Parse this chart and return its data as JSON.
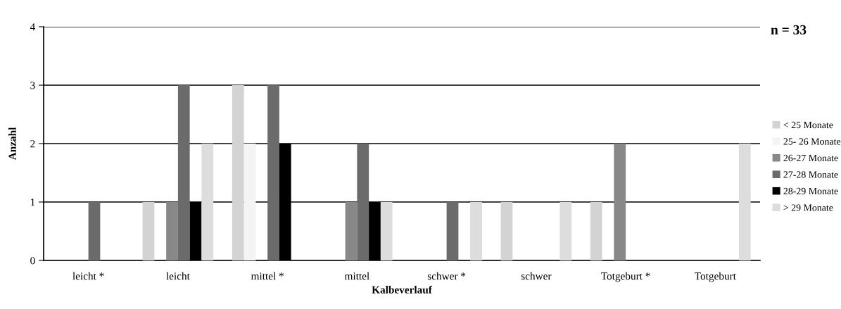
{
  "chart_data": {
    "type": "bar",
    "xlabel": "Kalbeverlauf",
    "ylabel": "Anzahl",
    "categories": [
      "leicht *",
      "leicht",
      "mittel *",
      "mittel",
      "schwer *",
      "schwer",
      "Totgeburt *",
      "Totgeburt"
    ],
    "series": [
      {
        "name": "< 25 Monate",
        "color": "#d3d3d3",
        "values": [
          0,
          1,
          3,
          0,
          0,
          1,
          1,
          0
        ]
      },
      {
        "name": "25- 26 Monate",
        "color": "#f4f4f4",
        "values": [
          0,
          0,
          2,
          0,
          0,
          0,
          0,
          0
        ]
      },
      {
        "name": "26-27 Monate",
        "color": "#888888",
        "values": [
          0,
          1,
          0,
          1,
          0,
          0,
          2,
          0
        ]
      },
      {
        "name": "27-28 Monate",
        "color": "#6b6b6b",
        "values": [
          1,
          3,
          3,
          2,
          1,
          0,
          0,
          0
        ]
      },
      {
        "name": "28-29 Monate",
        "color": "#000000",
        "values": [
          0,
          1,
          2,
          1,
          0,
          0,
          0,
          0
        ]
      },
      {
        "name": "> 29 Monate",
        "color": "#dddddd",
        "values": [
          0,
          2,
          0,
          1,
          1,
          1,
          0,
          2
        ]
      }
    ],
    "ylim": [
      0,
      4
    ],
    "yticks": [
      0,
      1,
      2,
      3,
      4
    ],
    "grid": "y",
    "legend": "right",
    "annotations": [
      "n = 33"
    ]
  }
}
